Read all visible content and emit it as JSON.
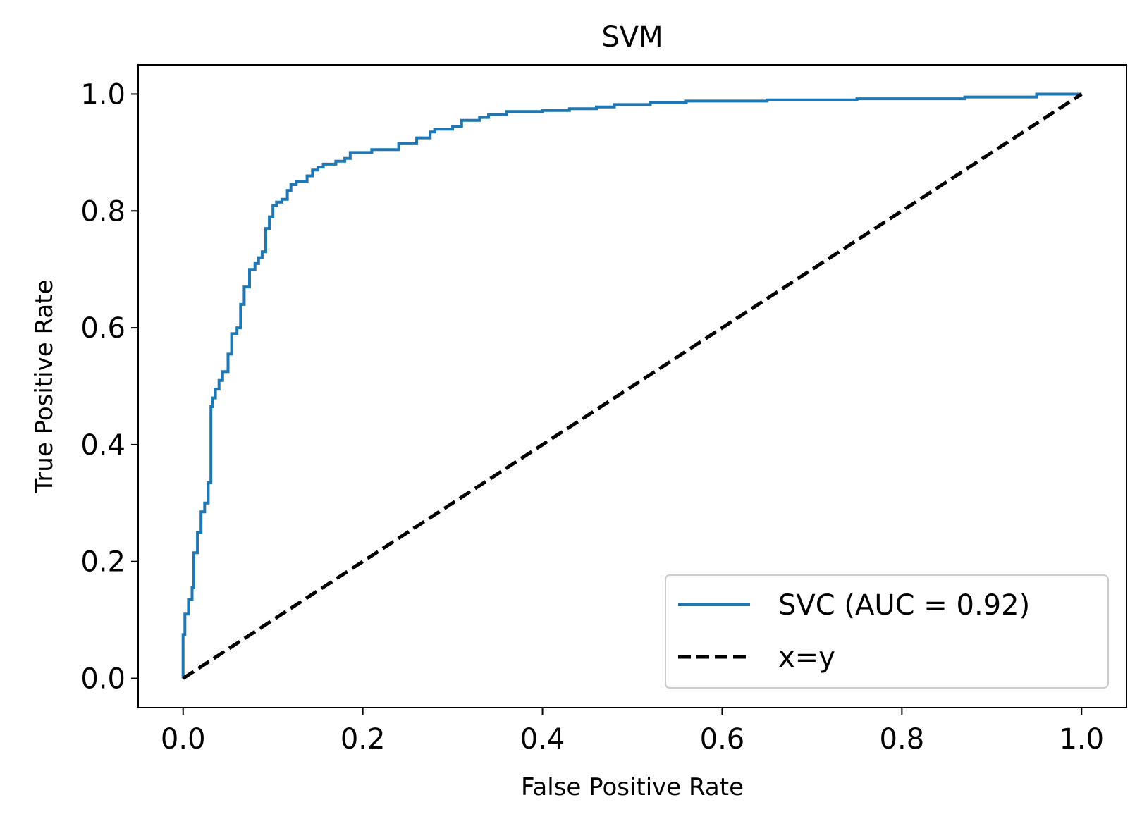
{
  "chart_data": {
    "type": "line",
    "title": "SVM",
    "xlabel": "False Positive Rate",
    "ylabel": "True Positive Rate",
    "xlim": [
      -0.05,
      1.05
    ],
    "ylim": [
      -0.05,
      1.05
    ],
    "xticks": [
      0.0,
      0.2,
      0.4,
      0.6,
      0.8,
      1.0
    ],
    "xtick_labels": [
      "0.0",
      "0.2",
      "0.4",
      "0.6",
      "0.8",
      "1.0"
    ],
    "yticks": [
      0.0,
      0.2,
      0.4,
      0.6,
      0.8,
      1.0
    ],
    "ytick_labels": [
      "0.0",
      "0.2",
      "0.4",
      "0.6",
      "0.8",
      "1.0"
    ],
    "grid": false,
    "legend_position": "lower-right",
    "series": [
      {
        "name": "SVC (AUC = 0.92)",
        "color": "#1f77b4",
        "style": "solid",
        "x": [
          0.0,
          0.0,
          0.002,
          0.002,
          0.006,
          0.006,
          0.01,
          0.01,
          0.012,
          0.012,
          0.016,
          0.016,
          0.02,
          0.02,
          0.024,
          0.024,
          0.028,
          0.028,
          0.031,
          0.031,
          0.033,
          0.033,
          0.036,
          0.036,
          0.04,
          0.04,
          0.044,
          0.044,
          0.05,
          0.05,
          0.054,
          0.054,
          0.06,
          0.06,
          0.064,
          0.064,
          0.068,
          0.068,
          0.074,
          0.074,
          0.08,
          0.08,
          0.084,
          0.084,
          0.088,
          0.088,
          0.092,
          0.092,
          0.096,
          0.096,
          0.1,
          0.1,
          0.104,
          0.104,
          0.11,
          0.11,
          0.116,
          0.116,
          0.12,
          0.12,
          0.126,
          0.126,
          0.138,
          0.138,
          0.144,
          0.144,
          0.15,
          0.15,
          0.156,
          0.156,
          0.17,
          0.17,
          0.18,
          0.18,
          0.186,
          0.186,
          0.21,
          0.21,
          0.24,
          0.24,
          0.26,
          0.26,
          0.275,
          0.275,
          0.28,
          0.28,
          0.3,
          0.3,
          0.31,
          0.31,
          0.33,
          0.33,
          0.34,
          0.34,
          0.36,
          0.36,
          0.4,
          0.4,
          0.43,
          0.43,
          0.46,
          0.46,
          0.48,
          0.48,
          0.52,
          0.52,
          0.56,
          0.56,
          0.65,
          0.65,
          0.75,
          0.75,
          0.87,
          0.87,
          0.95,
          0.95,
          1.0
        ],
        "y": [
          0.0,
          0.075,
          0.075,
          0.11,
          0.11,
          0.135,
          0.135,
          0.155,
          0.155,
          0.215,
          0.215,
          0.25,
          0.25,
          0.285,
          0.285,
          0.3,
          0.3,
          0.335,
          0.335,
          0.465,
          0.465,
          0.48,
          0.48,
          0.495,
          0.495,
          0.51,
          0.51,
          0.525,
          0.525,
          0.555,
          0.555,
          0.59,
          0.59,
          0.6,
          0.6,
          0.64,
          0.64,
          0.67,
          0.67,
          0.7,
          0.7,
          0.71,
          0.71,
          0.72,
          0.72,
          0.73,
          0.73,
          0.77,
          0.77,
          0.79,
          0.79,
          0.81,
          0.81,
          0.815,
          0.815,
          0.82,
          0.82,
          0.835,
          0.835,
          0.845,
          0.845,
          0.85,
          0.85,
          0.86,
          0.86,
          0.87,
          0.87,
          0.875,
          0.875,
          0.88,
          0.88,
          0.885,
          0.885,
          0.89,
          0.89,
          0.9,
          0.9,
          0.905,
          0.905,
          0.915,
          0.915,
          0.925,
          0.925,
          0.935,
          0.935,
          0.94,
          0.94,
          0.945,
          0.945,
          0.955,
          0.955,
          0.96,
          0.96,
          0.965,
          0.965,
          0.97,
          0.97,
          0.972,
          0.972,
          0.975,
          0.975,
          0.978,
          0.978,
          0.982,
          0.982,
          0.985,
          0.985,
          0.988,
          0.988,
          0.99,
          0.99,
          0.992,
          0.992,
          0.995,
          0.995,
          1.0,
          1.0
        ]
      },
      {
        "name": "x=y",
        "color": "#000000",
        "style": "dashed",
        "x": [
          0.0,
          1.0
        ],
        "y": [
          0.0,
          1.0
        ]
      }
    ]
  }
}
